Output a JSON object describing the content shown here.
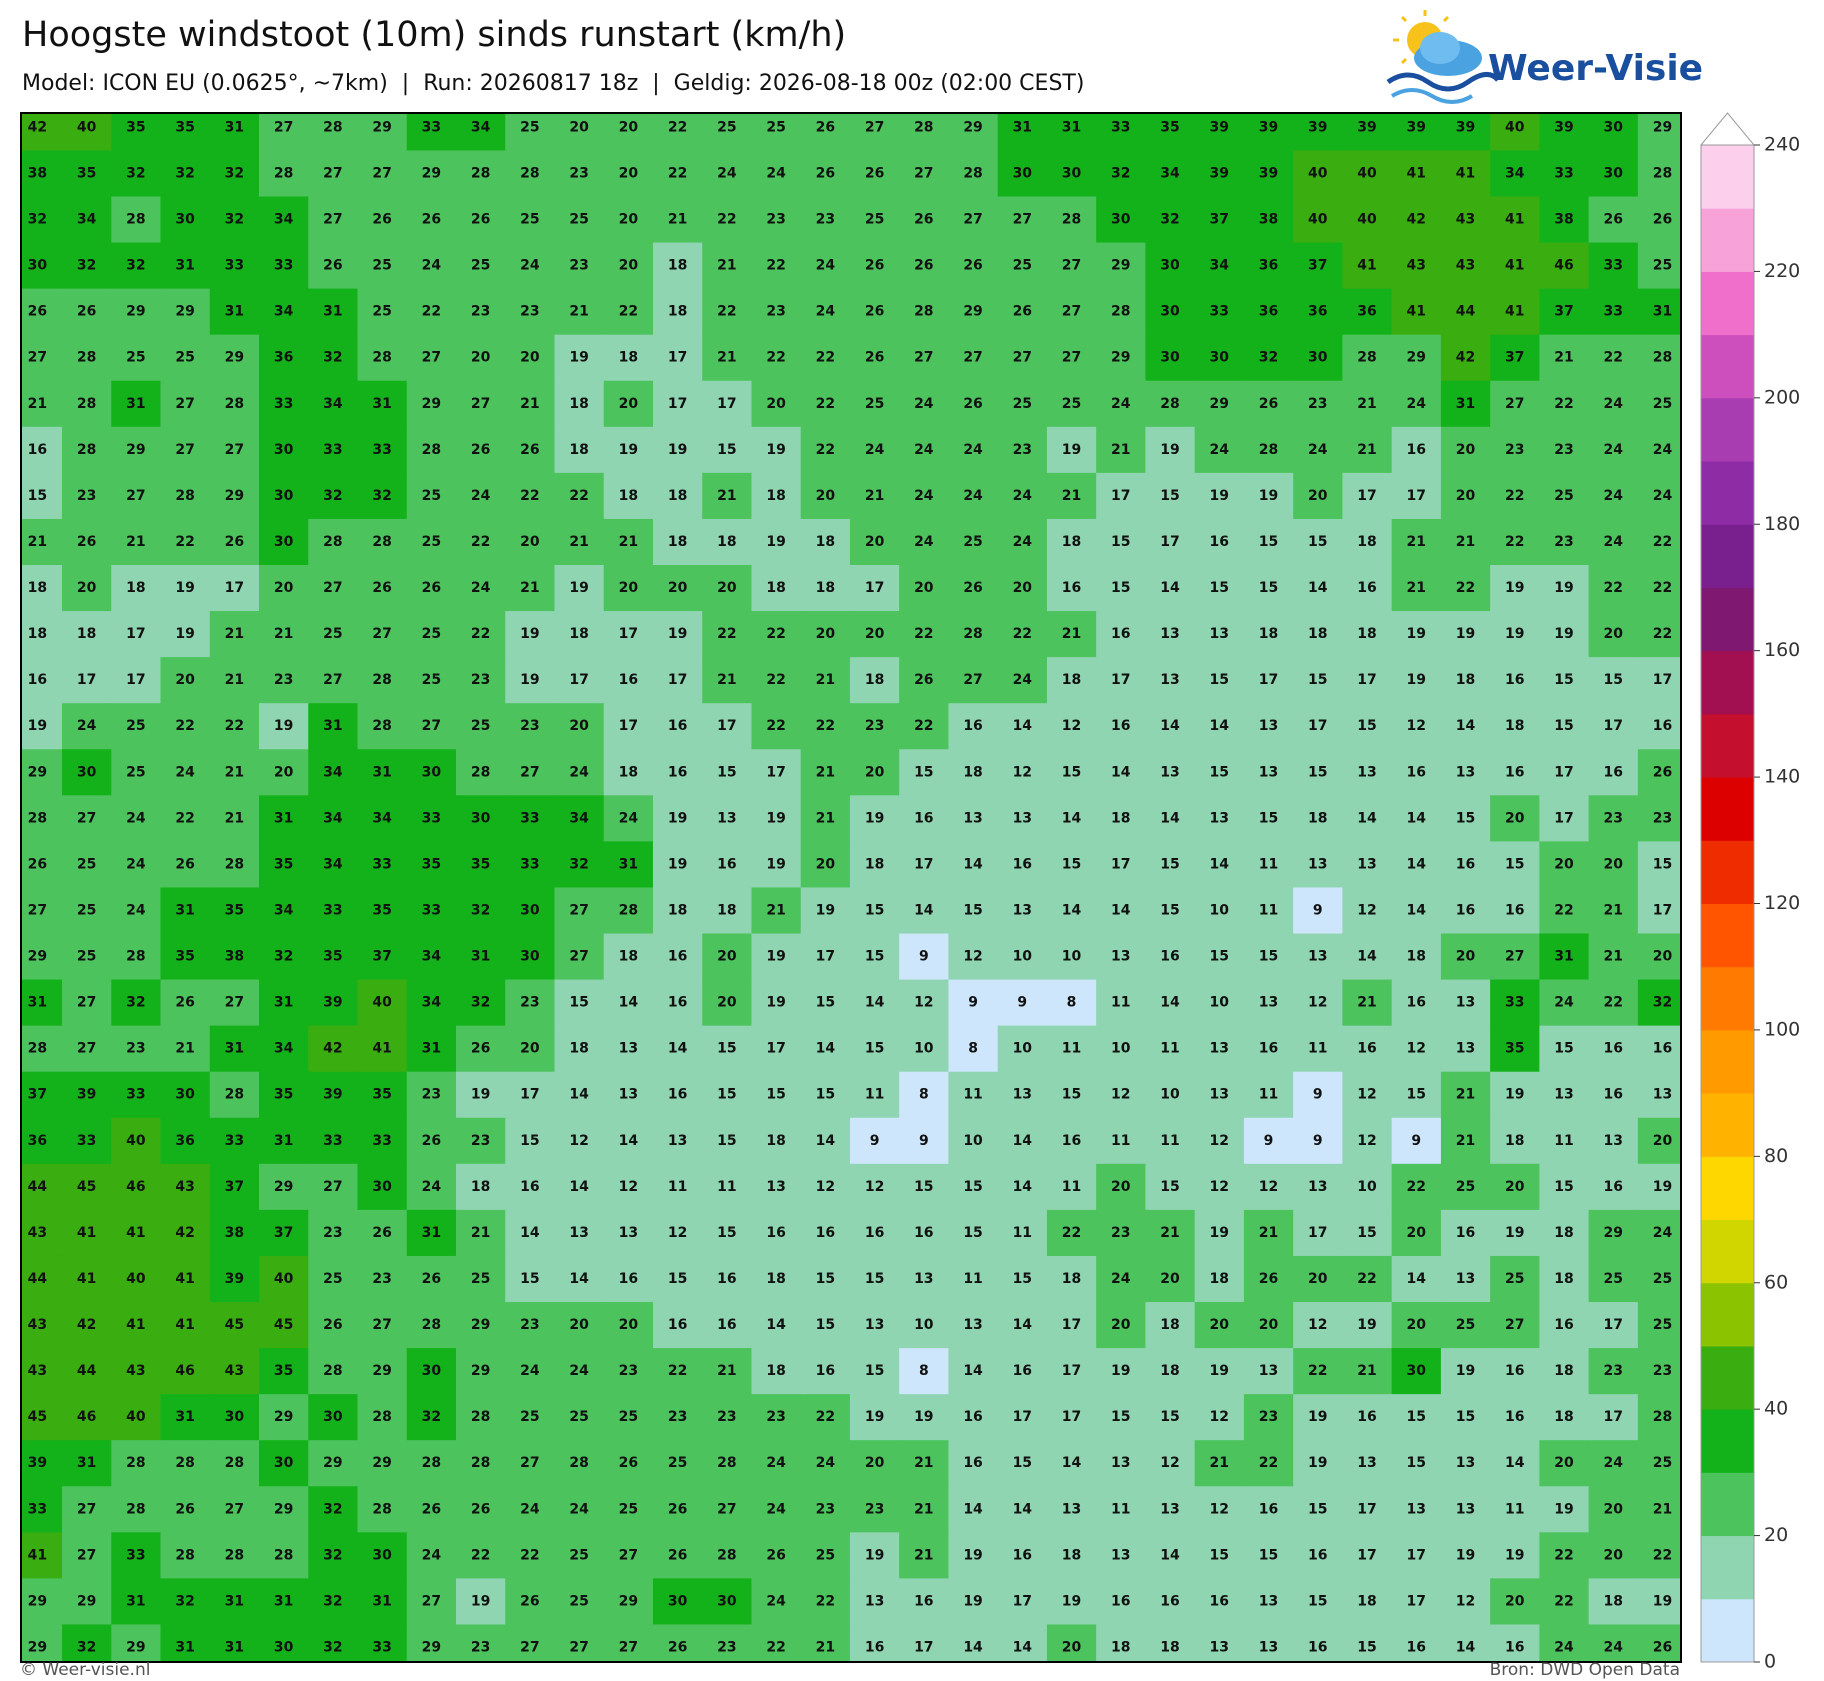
{
  "header": {
    "title": "Hoogste windstoot (10m) sinds runstart (km/h)",
    "subtitle": "Model: ICON EU (0.0625°, ~7km)  |  Run: 20260817 18z  |  Geldig: 2026-08-18 00z (02:00 CEST)",
    "logo": "Weer-Visie"
  },
  "grid": {
    "rows": [
      [
        42,
        40,
        35,
        35,
        31,
        27,
        28,
        29,
        33,
        34,
        25,
        20,
        20,
        22,
        25,
        25,
        26,
        27,
        28,
        29,
        31,
        31,
        33,
        35,
        39,
        39,
        39,
        39,
        39,
        39,
        40,
        39,
        30,
        29
      ],
      [
        38,
        35,
        32,
        32,
        32,
        28,
        27,
        27,
        29,
        28,
        28,
        23,
        20,
        22,
        24,
        24,
        26,
        26,
        27,
        28,
        30,
        30,
        32,
        34,
        39,
        39,
        40,
        40,
        41,
        41,
        34,
        33,
        30,
        28
      ],
      [
        32,
        34,
        28,
        30,
        32,
        34,
        27,
        26,
        26,
        26,
        25,
        25,
        20,
        21,
        22,
        23,
        23,
        25,
        26,
        27,
        27,
        28,
        30,
        32,
        37,
        38,
        40,
        40,
        42,
        43,
        41,
        38,
        26,
        26
      ],
      [
        30,
        32,
        32,
        31,
        33,
        33,
        26,
        25,
        24,
        25,
        24,
        23,
        20,
        18,
        21,
        22,
        24,
        26,
        26,
        26,
        25,
        27,
        29,
        30,
        34,
        36,
        37,
        41,
        43,
        43,
        41,
        46,
        33,
        25
      ],
      [
        26,
        26,
        29,
        29,
        31,
        34,
        31,
        25,
        22,
        23,
        23,
        21,
        22,
        18,
        22,
        23,
        24,
        26,
        28,
        29,
        26,
        27,
        28,
        30,
        33,
        36,
        36,
        36,
        41,
        44,
        41,
        37,
        33,
        31
      ],
      [
        27,
        28,
        25,
        25,
        29,
        36,
        32,
        28,
        27,
        20,
        20,
        19,
        18,
        17,
        21,
        22,
        22,
        26,
        27,
        27,
        27,
        27,
        29,
        30,
        30,
        32,
        30,
        28,
        29,
        42,
        37,
        21,
        22,
        28
      ],
      [
        21,
        28,
        31,
        27,
        28,
        33,
        34,
        31,
        29,
        27,
        21,
        18,
        20,
        17,
        17,
        20,
        22,
        25,
        24,
        26,
        25,
        25,
        24,
        28,
        29,
        26,
        23,
        21,
        24,
        31,
        27,
        22,
        24,
        25
      ],
      [
        16,
        28,
        29,
        27,
        27,
        30,
        33,
        33,
        28,
        26,
        26,
        18,
        19,
        19,
        15,
        19,
        22,
        24,
        24,
        24,
        23,
        19,
        21,
        19,
        24,
        28,
        24,
        21,
        16,
        20,
        23,
        23,
        24,
        24
      ],
      [
        15,
        23,
        27,
        28,
        29,
        30,
        32,
        32,
        25,
        24,
        22,
        22,
        18,
        18,
        21,
        18,
        20,
        21,
        24,
        24,
        24,
        21,
        17,
        15,
        19,
        19,
        20,
        17,
        17,
        20,
        22,
        25,
        24,
        24
      ],
      [
        21,
        26,
        21,
        22,
        26,
        30,
        28,
        28,
        25,
        22,
        20,
        21,
        21,
        18,
        18,
        19,
        18,
        20,
        24,
        25,
        24,
        18,
        15,
        17,
        16,
        15,
        15,
        18,
        21,
        21,
        22,
        23,
        24,
        22
      ],
      [
        18,
        20,
        18,
        19,
        17,
        20,
        27,
        26,
        26,
        24,
        21,
        19,
        20,
        20,
        20,
        18,
        18,
        17,
        20,
        26,
        20,
        16,
        15,
        14,
        15,
        15,
        14,
        16,
        21,
        22,
        19,
        19,
        22,
        22
      ],
      [
        18,
        18,
        17,
        19,
        21,
        21,
        25,
        27,
        25,
        22,
        19,
        18,
        17,
        19,
        22,
        22,
        20,
        20,
        22,
        28,
        22,
        21,
        16,
        13,
        13,
        18,
        18,
        18,
        19,
        19,
        19,
        19,
        20,
        22
      ],
      [
        16,
        17,
        17,
        20,
        21,
        23,
        27,
        28,
        25,
        23,
        19,
        17,
        16,
        17,
        21,
        22,
        21,
        18,
        26,
        27,
        24,
        18,
        17,
        13,
        15,
        17,
        15,
        17,
        19,
        18,
        16,
        15,
        15,
        17
      ],
      [
        19,
        24,
        25,
        22,
        22,
        19,
        31,
        28,
        27,
        25,
        23,
        20,
        17,
        16,
        17,
        22,
        22,
        23,
        22,
        16,
        14,
        12,
        16,
        14,
        14,
        13,
        17,
        15,
        12,
        14,
        18,
        15,
        17,
        16
      ],
      [
        29,
        30,
        25,
        24,
        21,
        20,
        34,
        31,
        30,
        28,
        27,
        24,
        18,
        16,
        15,
        17,
        21,
        20,
        15,
        18,
        12,
        15,
        14,
        13,
        15,
        13,
        15,
        13,
        16,
        13,
        16,
        17,
        16,
        26
      ],
      [
        28,
        27,
        24,
        22,
        21,
        31,
        34,
        34,
        33,
        30,
        33,
        34,
        24,
        19,
        13,
        19,
        21,
        19,
        16,
        13,
        13,
        14,
        18,
        14,
        13,
        15,
        18,
        14,
        14,
        15,
        20,
        17,
        23,
        23
      ],
      [
        26,
        25,
        24,
        26,
        28,
        35,
        34,
        33,
        35,
        35,
        33,
        32,
        31,
        19,
        16,
        19,
        20,
        18,
        17,
        14,
        16,
        15,
        17,
        15,
        14,
        11,
        13,
        13,
        14,
        16,
        15,
        20,
        20,
        15
      ],
      [
        27,
        25,
        24,
        31,
        35,
        34,
        33,
        35,
        33,
        32,
        30,
        27,
        28,
        18,
        18,
        21,
        19,
        15,
        14,
        15,
        13,
        14,
        14,
        15,
        10,
        11,
        9,
        12,
        14,
        16,
        16,
        22,
        21,
        17
      ],
      [
        29,
        25,
        28,
        35,
        38,
        32,
        35,
        37,
        34,
        31,
        30,
        27,
        18,
        16,
        20,
        19,
        17,
        15,
        9,
        12,
        10,
        10,
        13,
        16,
        15,
        15,
        13,
        14,
        18,
        20,
        27,
        31,
        21,
        20
      ],
      [
        31,
        27,
        32,
        26,
        27,
        31,
        39,
        40,
        34,
        32,
        23,
        15,
        14,
        16,
        20,
        19,
        15,
        14,
        12,
        9,
        9,
        8,
        11,
        14,
        10,
        13,
        12,
        21,
        16,
        13,
        33,
        24,
        22,
        32
      ],
      [
        28,
        27,
        23,
        21,
        31,
        34,
        42,
        41,
        31,
        26,
        20,
        18,
        13,
        14,
        15,
        17,
        14,
        15,
        10,
        8,
        10,
        11,
        10,
        11,
        13,
        16,
        11,
        16,
        12,
        13,
        35,
        15,
        16,
        16
      ],
      [
        37,
        39,
        33,
        30,
        28,
        35,
        39,
        35,
        23,
        19,
        17,
        14,
        13,
        16,
        15,
        15,
        15,
        11,
        8,
        11,
        13,
        15,
        12,
        10,
        13,
        11,
        9,
        12,
        15,
        21,
        19,
        13,
        16,
        13
      ],
      [
        36,
        33,
        40,
        36,
        33,
        31,
        33,
        33,
        26,
        23,
        15,
        12,
        14,
        13,
        15,
        18,
        14,
        9,
        9,
        10,
        14,
        16,
        11,
        11,
        12,
        9,
        9,
        12,
        9,
        21,
        18,
        11,
        13,
        20
      ],
      [
        44,
        45,
        46,
        43,
        37,
        29,
        27,
        30,
        24,
        18,
        16,
        14,
        12,
        11,
        11,
        13,
        12,
        12,
        15,
        15,
        14,
        11,
        20,
        15,
        12,
        12,
        13,
        10,
        22,
        25,
        20,
        15,
        16,
        19
      ],
      [
        43,
        41,
        41,
        42,
        38,
        37,
        23,
        26,
        31,
        21,
        14,
        13,
        13,
        12,
        15,
        16,
        16,
        16,
        16,
        15,
        11,
        22,
        23,
        21,
        19,
        21,
        17,
        15,
        20,
        16,
        19,
        18,
        29,
        24
      ],
      [
        44,
        41,
        40,
        41,
        39,
        40,
        25,
        23,
        26,
        25,
        15,
        14,
        16,
        15,
        16,
        18,
        15,
        15,
        13,
        11,
        15,
        18,
        24,
        20,
        18,
        26,
        20,
        22,
        14,
        13,
        25,
        18,
        25,
        25
      ],
      [
        43,
        42,
        41,
        41,
        45,
        45,
        26,
        27,
        28,
        29,
        23,
        20,
        20,
        16,
        16,
        14,
        15,
        13,
        10,
        13,
        14,
        17,
        20,
        18,
        20,
        20,
        12,
        19,
        20,
        25,
        27,
        16,
        17,
        25
      ],
      [
        43,
        44,
        43,
        46,
        43,
        35,
        28,
        29,
        30,
        29,
        24,
        24,
        23,
        22,
        21,
        18,
        16,
        15,
        8,
        14,
        16,
        17,
        19,
        18,
        19,
        13,
        22,
        21,
        30,
        19,
        16,
        18,
        23,
        23
      ],
      [
        45,
        46,
        40,
        31,
        30,
        29,
        30,
        28,
        32,
        28,
        25,
        25,
        25,
        23,
        23,
        23,
        22,
        19,
        19,
        16,
        17,
        17,
        15,
        15,
        12,
        23,
        19,
        16,
        15,
        15,
        16,
        18,
        17,
        28
      ],
      [
        39,
        31,
        28,
        28,
        28,
        30,
        29,
        29,
        28,
        28,
        27,
        28,
        26,
        25,
        28,
        24,
        24,
        20,
        21,
        16,
        15,
        14,
        13,
        12,
        21,
        22,
        19,
        13,
        15,
        13,
        14,
        20,
        24,
        25
      ],
      [
        33,
        27,
        28,
        26,
        27,
        29,
        32,
        28,
        26,
        26,
        24,
        24,
        25,
        26,
        27,
        24,
        23,
        23,
        21,
        14,
        14,
        13,
        11,
        13,
        12,
        16,
        15,
        17,
        13,
        13,
        11,
        19,
        20,
        21
      ],
      [
        41,
        27,
        33,
        28,
        28,
        28,
        32,
        30,
        24,
        22,
        22,
        25,
        27,
        26,
        28,
        26,
        25,
        19,
        21,
        19,
        16,
        18,
        13,
        14,
        15,
        15,
        16,
        17,
        17,
        19,
        19,
        22,
        20,
        22
      ],
      [
        29,
        29,
        31,
        32,
        31,
        31,
        32,
        31,
        27,
        19,
        26,
        25,
        29,
        30,
        30,
        24,
        22,
        13,
        16,
        19,
        17,
        19,
        16,
        16,
        16,
        13,
        15,
        18,
        17,
        12,
        20,
        22,
        18,
        19
      ],
      [
        29,
        32,
        29,
        31,
        31,
        30,
        32,
        33,
        29,
        23,
        27,
        27,
        27,
        26,
        23,
        22,
        21,
        16,
        17,
        14,
        14,
        20,
        18,
        18,
        13,
        13,
        16,
        15,
        16,
        14,
        16,
        24,
        24,
        26
      ]
    ]
  },
  "colorbar": {
    "lim": [
      0,
      240
    ],
    "ticks": [
      0,
      20,
      40,
      60,
      80,
      100,
      120,
      140,
      160,
      180,
      200,
      220,
      240
    ],
    "colors": [
      "#cde6fb",
      "#8fd5b1",
      "#4cc35c",
      "#14b21a",
      "#3aad10",
      "#8cc300",
      "#d2d600",
      "#ffd700",
      "#ffb300",
      "#ff9a00",
      "#ff7a00",
      "#ff5500",
      "#ee2c00",
      "#dd0000",
      "#c4102e",
      "#a31052",
      "#7e1870",
      "#7a1f8e",
      "#8e2ca6",
      "#a83db2",
      "#cc4fbd",
      "#f06fca",
      "#f7a2d9",
      "#fcd0ec"
    ],
    "extend": "max"
  },
  "footer": {
    "left": "© Weer-visie.nl",
    "right": "Bron: DWD Open Data"
  }
}
